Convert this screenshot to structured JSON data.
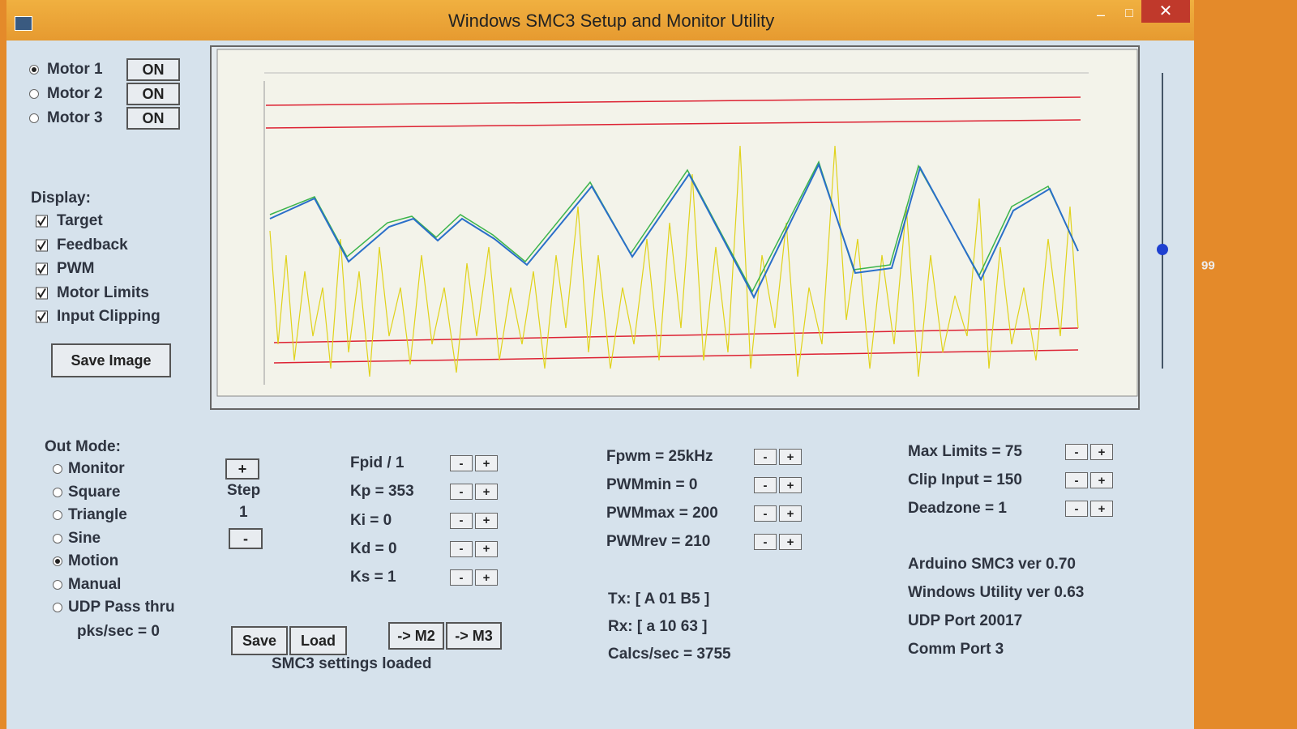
{
  "window": {
    "title": "Windows SMC3 Setup and Monitor Utility"
  },
  "motors": [
    {
      "label": "Motor 1",
      "button": "ON",
      "selected": true
    },
    {
      "label": "Motor 2",
      "button": "ON",
      "selected": false
    },
    {
      "label": "Motor 3",
      "button": "ON",
      "selected": false
    }
  ],
  "display": {
    "heading": "Display:",
    "options": [
      {
        "label": "Target",
        "checked": true
      },
      {
        "label": "Feedback",
        "checked": true
      },
      {
        "label": "PWM",
        "checked": true
      },
      {
        "label": "Motor Limits",
        "checked": true
      },
      {
        "label": "Input Clipping",
        "checked": true
      }
    ],
    "save_button": "Save Image"
  },
  "out_mode": {
    "heading": "Out Mode:",
    "options": [
      {
        "label": "Monitor",
        "selected": false
      },
      {
        "label": "Square",
        "selected": false
      },
      {
        "label": "Triangle",
        "selected": false
      },
      {
        "label": "Sine",
        "selected": false
      },
      {
        "label": "Motion",
        "selected": true
      },
      {
        "label": "Manual",
        "selected": false
      },
      {
        "label": "UDP Pass thru",
        "selected": false
      }
    ],
    "rate": "pks/sec = 0"
  },
  "step": {
    "increment": "+",
    "label": "Step",
    "value": "1",
    "decrement": "-"
  },
  "adjust": {
    "minus": "-",
    "plus": "+"
  },
  "pid": [
    "Fpid / 1",
    "Kp = 353",
    "Ki = 0",
    "Kd = 0",
    "Ks = 1"
  ],
  "pwm": [
    "Fpwm = 25kHz",
    "PWMmin = 0",
    "PWMmax = 200",
    "PWMrev = 210"
  ],
  "comm": [
    "Tx: [ A 01 B5 ]",
    "Rx: [ a 10 63 ]",
    "Calcs/sec = 3755"
  ],
  "limits": [
    "Max Limits = 75",
    "Clip Input = 150",
    "Deadzone = 1"
  ],
  "info": [
    "Arduino SMC3 ver 0.70",
    "Windows Utility ver 0.63",
    "UDP Port 20017",
    "Comm Port 3"
  ],
  "buttons": {
    "save": "Save",
    "load": "Load",
    "to_m2": "-> M2",
    "to_m3": "-> M3"
  },
  "status": "SMC3 settings loaded",
  "slider_value": "99"
}
